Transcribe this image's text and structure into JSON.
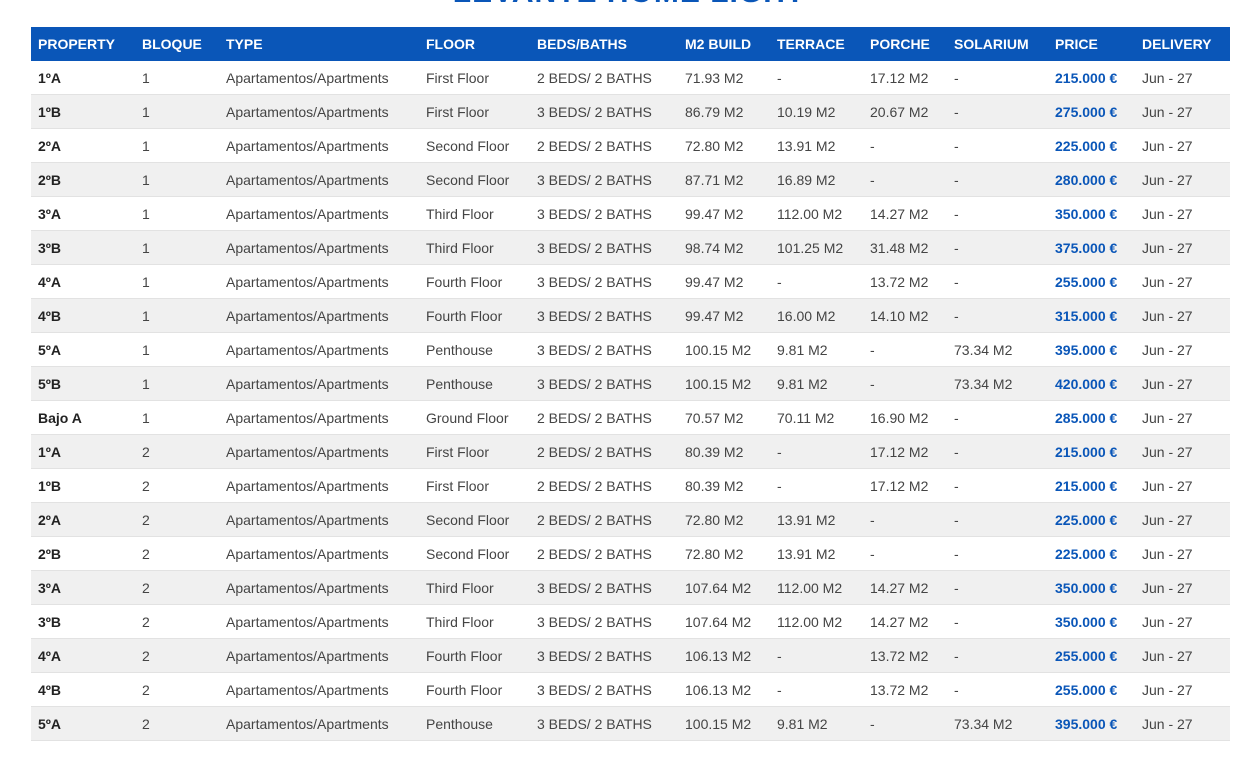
{
  "title": "LEVANTE HOME LIGHT",
  "table": {
    "headers": [
      "PROPERTY",
      "BLOQUE",
      "TYPE",
      "FLOOR",
      "BEDS/BATHS",
      "M2 BUILD",
      "TERRACE",
      "PORCHE",
      "SOLARIUM",
      "PRICE",
      "DELIVERY"
    ],
    "rows": [
      [
        "1ºA",
        "1",
        "Apartamentos/Apartments",
        "First Floor",
        "2 BEDS/ 2 BATHS",
        "71.93 M2",
        "-",
        "17.12 M2",
        "-",
        "215.000 €",
        "Jun - 27"
      ],
      [
        "1ºB",
        "1",
        "Apartamentos/Apartments",
        "First Floor",
        "3 BEDS/ 2 BATHS",
        "86.79 M2",
        "10.19 M2",
        "20.67 M2",
        "-",
        "275.000 €",
        "Jun - 27"
      ],
      [
        "2ºA",
        "1",
        "Apartamentos/Apartments",
        "Second Floor",
        "2 BEDS/ 2 BATHS",
        "72.80 M2",
        "13.91 M2",
        "-",
        "-",
        "225.000 €",
        "Jun - 27"
      ],
      [
        "2ºB",
        "1",
        "Apartamentos/Apartments",
        "Second Floor",
        "3 BEDS/ 2 BATHS",
        "87.71 M2",
        "16.89 M2",
        "-",
        "-",
        "280.000 €",
        "Jun - 27"
      ],
      [
        "3ºA",
        "1",
        "Apartamentos/Apartments",
        "Third Floor",
        "3 BEDS/ 2 BATHS",
        "99.47 M2",
        "112.00 M2",
        "14.27 M2",
        "-",
        "350.000 €",
        "Jun - 27"
      ],
      [
        "3ºB",
        "1",
        "Apartamentos/Apartments",
        "Third Floor",
        "3 BEDS/ 2 BATHS",
        "98.74 M2",
        "101.25 M2",
        "31.48 M2",
        "-",
        "375.000 €",
        "Jun - 27"
      ],
      [
        "4ºA",
        "1",
        "Apartamentos/Apartments",
        "Fourth Floor",
        "3 BEDS/ 2 BATHS",
        "99.47 M2",
        "-",
        "13.72 M2",
        "-",
        "255.000 €",
        "Jun - 27"
      ],
      [
        "4ºB",
        "1",
        "Apartamentos/Apartments",
        "Fourth Floor",
        "3 BEDS/ 2 BATHS",
        "99.47 M2",
        "16.00 M2",
        "14.10 M2",
        "-",
        "315.000 €",
        "Jun - 27"
      ],
      [
        "5ºA",
        "1",
        "Apartamentos/Apartments",
        "Penthouse",
        "3 BEDS/ 2 BATHS",
        "100.15 M2",
        "9.81 M2",
        "-",
        "73.34 M2",
        "395.000 €",
        "Jun - 27"
      ],
      [
        "5ºB",
        "1",
        "Apartamentos/Apartments",
        "Penthouse",
        "3 BEDS/ 2 BATHS",
        "100.15 M2",
        "9.81 M2",
        "-",
        "73.34 M2",
        "420.000 €",
        "Jun - 27"
      ],
      [
        "Bajo A",
        "1",
        "Apartamentos/Apartments",
        "Ground Floor",
        "2 BEDS/ 2 BATHS",
        "70.57 M2",
        "70.11 M2",
        "16.90 M2",
        "-",
        "285.000 €",
        "Jun - 27"
      ],
      [
        "1ºA",
        "2",
        "Apartamentos/Apartments",
        "First Floor",
        "2 BEDS/ 2 BATHS",
        "80.39 M2",
        "-",
        "17.12 M2",
        "-",
        "215.000 €",
        "Jun - 27"
      ],
      [
        "1ºB",
        "2",
        "Apartamentos/Apartments",
        "First Floor",
        "2 BEDS/ 2 BATHS",
        "80.39 M2",
        "-",
        "17.12 M2",
        "-",
        "215.000 €",
        "Jun - 27"
      ],
      [
        "2ºA",
        "2",
        "Apartamentos/Apartments",
        "Second Floor",
        "2 BEDS/ 2 BATHS",
        "72.80 M2",
        "13.91 M2",
        "-",
        "-",
        "225.000 €",
        "Jun - 27"
      ],
      [
        "2ºB",
        "2",
        "Apartamentos/Apartments",
        "Second Floor",
        "2 BEDS/ 2 BATHS",
        "72.80 M2",
        "13.91 M2",
        "-",
        "-",
        "225.000 €",
        "Jun - 27"
      ],
      [
        "3ºA",
        "2",
        "Apartamentos/Apartments",
        "Third Floor",
        "3 BEDS/ 2 BATHS",
        "107.64 M2",
        "112.00 M2",
        "14.27 M2",
        "-",
        "350.000 €",
        "Jun - 27"
      ],
      [
        "3ºB",
        "2",
        "Apartamentos/Apartments",
        "Third Floor",
        "3 BEDS/ 2 BATHS",
        "107.64 M2",
        "112.00 M2",
        "14.27 M2",
        "-",
        "350.000 €",
        "Jun - 27"
      ],
      [
        "4ºA",
        "2",
        "Apartamentos/Apartments",
        "Fourth Floor",
        "3 BEDS/ 2 BATHS",
        "106.13 M2",
        "-",
        "13.72 M2",
        "-",
        "255.000 €",
        "Jun - 27"
      ],
      [
        "4ºB",
        "2",
        "Apartamentos/Apartments",
        "Fourth Floor",
        "3 BEDS/ 2 BATHS",
        "106.13 M2",
        "-",
        "13.72 M2",
        "-",
        "255.000 €",
        "Jun - 27"
      ],
      [
        "5ºA",
        "2",
        "Apartamentos/Apartments",
        "Penthouse",
        "3 BEDS/ 2 BATHS",
        "100.15 M2",
        "9.81 M2",
        "-",
        "73.34 M2",
        "395.000 €",
        "Jun - 27"
      ]
    ]
  }
}
